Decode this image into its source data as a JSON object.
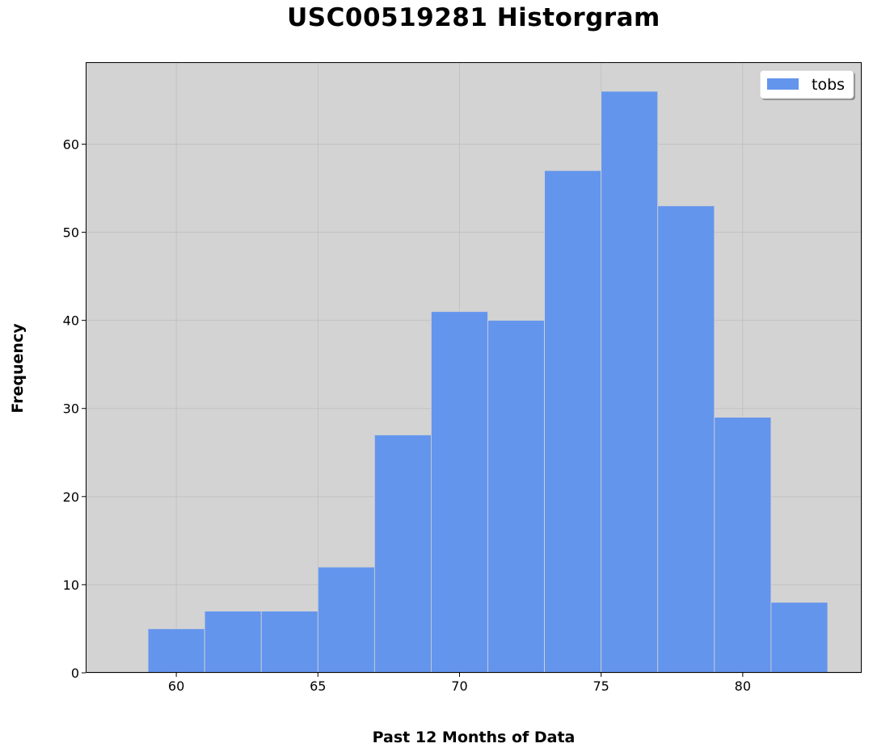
{
  "chart_data": {
    "type": "bar",
    "title": "USC00519281 Historgram",
    "xlabel": "Past 12 Months of Data",
    "ylabel": "Frequency",
    "bin_edges": [
      59,
      61,
      63,
      65,
      67,
      69,
      71,
      73,
      75,
      77,
      79,
      81,
      83
    ],
    "series": [
      {
        "name": "tobs",
        "values": [
          5,
          7,
          7,
          12,
          27,
          41,
          40,
          57,
          66,
          53,
          29,
          8
        ]
      }
    ],
    "xlim": [
      56.8,
      84.2
    ],
    "ylim": [
      0,
      69.3
    ],
    "xticks": [
      60,
      65,
      70,
      75,
      80
    ],
    "yticks": [
      0,
      10,
      20,
      30,
      40,
      50,
      60
    ],
    "grid": true,
    "legend_position": "top-right",
    "colors": {
      "bar": "#6495ED",
      "bar_edge": "#d3d3d3",
      "plot_background": "#D3D3D3",
      "grid": "#c2c2c2"
    }
  }
}
